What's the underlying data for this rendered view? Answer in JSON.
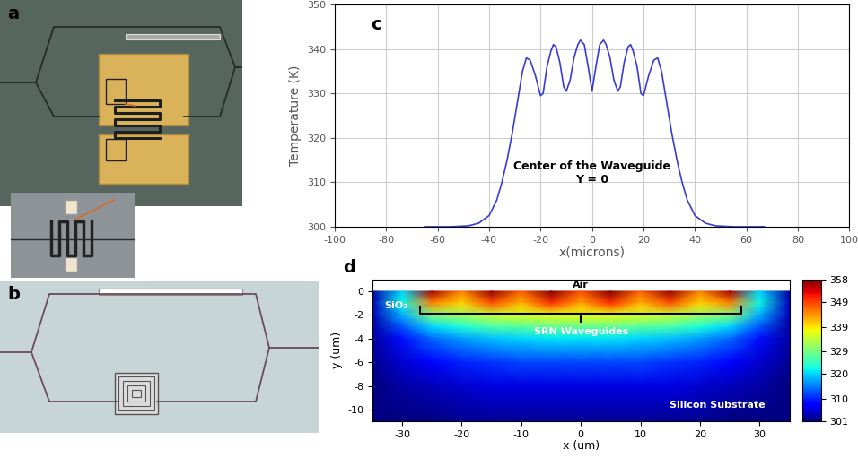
{
  "panels": [
    {
      "label": "a"
    },
    {
      "label": "b"
    }
  ],
  "chart_data": [
    {
      "type": "line",
      "label": "c",
      "x": [
        -65,
        -55,
        -48,
        -44,
        -40,
        -37,
        -35,
        -33,
        -31,
        -29,
        -27,
        -25.5,
        -24,
        -22,
        -20,
        -19,
        -17.5,
        -16,
        -15,
        -14,
        -12.5,
        -11,
        -10,
        -8.5,
        -7,
        -5.5,
        -4.5,
        -3,
        -1.5,
        0,
        1.5,
        3,
        4.5,
        5.5,
        7,
        8.5,
        10,
        11,
        12.5,
        14,
        15,
        16,
        17.5,
        19,
        20,
        22,
        24,
        25.5,
        27,
        29,
        31,
        33,
        35,
        37,
        40,
        44,
        48,
        55,
        67
      ],
      "values": [
        300,
        300,
        300.2,
        300.8,
        302.5,
        306,
        310,
        315,
        321,
        328,
        335,
        338,
        337.5,
        334,
        329.5,
        330,
        336,
        339.5,
        341,
        340.5,
        337,
        331.5,
        330.5,
        333,
        338,
        341,
        342,
        341,
        336,
        330.5,
        336,
        341,
        342,
        341,
        338,
        333,
        330.5,
        331.5,
        337,
        340.5,
        341,
        339.5,
        336,
        330,
        329.5,
        334,
        337.5,
        338,
        335,
        328,
        321,
        315,
        310,
        306,
        302.5,
        300.8,
        300.2,
        300,
        300
      ],
      "color": "#3a3ad6",
      "xlim": [
        -100,
        100
      ],
      "xticks": [
        -100,
        -80,
        -60,
        -40,
        -20,
        0,
        20,
        40,
        60,
        80,
        100
      ],
      "ylim": [
        300,
        350
      ],
      "yticks": [
        300,
        310,
        320,
        330,
        340,
        350
      ],
      "x_label": "x(microns)",
      "y_label": "Temperature (K)",
      "annotation": "Center of the Waveguide\nY = 0",
      "grid": true
    },
    {
      "type": "heatmap",
      "label": "d",
      "x": [
        -35,
        -30,
        -25,
        -20,
        -15,
        -10,
        -5,
        0,
        5,
        10,
        15,
        20,
        25,
        30,
        35
      ],
      "y": [
        0,
        -1,
        -2,
        -3,
        -4,
        -6,
        -8,
        -11
      ],
      "cells": [
        [
          303,
          320,
          356,
          345,
          357,
          347,
          358,
          348,
          358,
          347,
          357,
          345,
          356,
          320,
          303
        ],
        [
          304,
          322,
          345,
          340,
          348,
          342,
          350,
          343,
          350,
          342,
          348,
          340,
          345,
          322,
          304
        ],
        [
          304,
          318,
          330,
          332,
          335,
          336,
          337,
          337,
          337,
          336,
          335,
          332,
          330,
          318,
          304
        ],
        [
          303,
          313,
          320,
          323,
          326,
          327,
          328,
          328,
          328,
          327,
          326,
          323,
          320,
          313,
          303
        ],
        [
          303,
          309,
          314,
          317,
          319,
          320,
          321,
          321,
          321,
          320,
          319,
          317,
          314,
          309,
          303
        ],
        [
          302,
          305,
          308,
          310,
          311,
          312,
          312,
          312,
          312,
          312,
          311,
          310,
          308,
          305,
          302
        ],
        [
          301,
          303,
          304,
          305,
          306,
          306,
          306,
          306,
          306,
          306,
          306,
          305,
          304,
          303,
          301
        ],
        [
          301,
          301,
          301,
          302,
          302,
          302,
          302,
          302,
          302,
          302,
          302,
          302,
          301,
          301,
          301
        ]
      ],
      "xlim": [
        -35,
        35
      ],
      "xticks": [
        -30,
        -20,
        -10,
        0,
        10,
        20,
        30
      ],
      "ylim": [
        -11,
        1
      ],
      "yticks": [
        0,
        -2,
        -4,
        -6,
        -8,
        -10
      ],
      "x_label": "x (um)",
      "y_label": "y (um)",
      "colorbar_range": [
        301,
        358
      ],
      "colorbar_ticks": [
        358,
        349,
        339,
        329,
        320,
        310,
        301
      ],
      "annotations": [
        "Air",
        "SiO₂",
        "SRN Waveguides",
        "Silicon Substrate"
      ]
    }
  ]
}
